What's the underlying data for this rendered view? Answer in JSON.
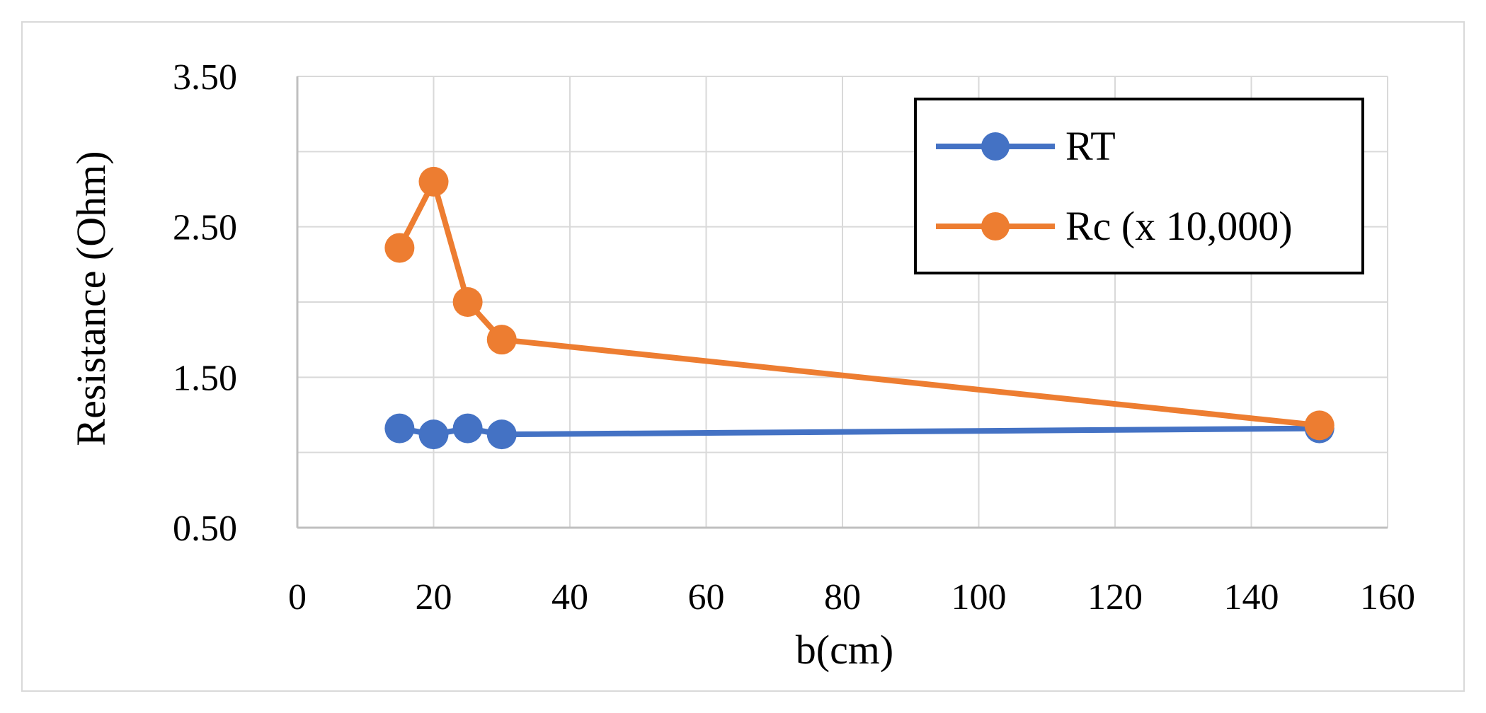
{
  "chart_data": {
    "type": "line",
    "title": "",
    "xlabel": "b(cm)",
    "ylabel": "Resistance (Ohm)",
    "xlim": [
      0,
      160
    ],
    "ylim": [
      0.5,
      3.5
    ],
    "xticks": [
      0,
      20,
      40,
      60,
      80,
      100,
      120,
      140,
      160
    ],
    "yticks": [
      0.5,
      1.5,
      2.5,
      3.5
    ],
    "xtick_labels": [
      "0",
      "20",
      "40",
      "60",
      "80",
      "100",
      "120",
      "140",
      "160"
    ],
    "ytick_labels": [
      "0.50",
      "1.50",
      "2.50",
      "3.50"
    ],
    "grid": true,
    "legend_position": "top-right",
    "series": [
      {
        "name": "RT",
        "color": "#4472c4",
        "x": [
          15,
          20,
          25,
          30,
          150
        ],
        "y": [
          1.16,
          1.12,
          1.16,
          1.12,
          1.16
        ]
      },
      {
        "name": "Rc (x 10,000)",
        "color": "#ed7d31",
        "x": [
          15,
          20,
          25,
          30,
          150
        ],
        "y": [
          2.36,
          2.8,
          2.0,
          1.75,
          1.18
        ]
      }
    ]
  }
}
